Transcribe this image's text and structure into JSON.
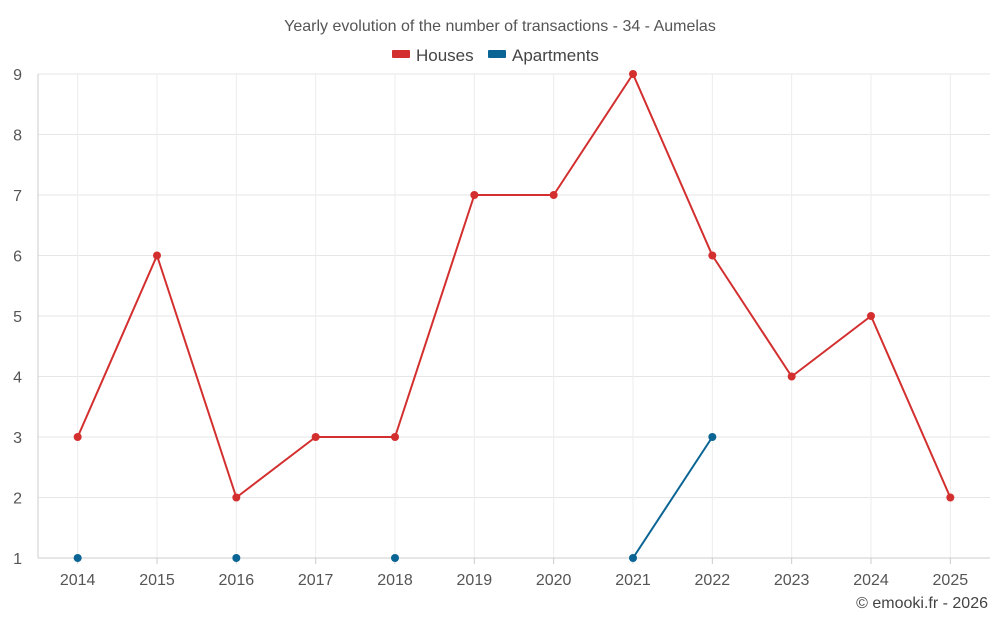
{
  "chart_data": {
    "type": "line",
    "title": "Yearly evolution of the number of transactions - 34 - Aumelas",
    "xlabel": "",
    "ylabel": "",
    "categories": [
      "2014",
      "2015",
      "2016",
      "2017",
      "2018",
      "2019",
      "2020",
      "2021",
      "2022",
      "2023",
      "2024",
      "2025"
    ],
    "ylim": [
      1,
      9
    ],
    "yticks": [
      1,
      2,
      3,
      4,
      5,
      6,
      7,
      8,
      9
    ],
    "grid": true,
    "legend_position": "top-center",
    "series": [
      {
        "name": "Houses",
        "color": "#d32f2f",
        "values": [
          3,
          6,
          2,
          3,
          3,
          7,
          7,
          9,
          6,
          4,
          5,
          2
        ]
      },
      {
        "name": "Apartments",
        "color": "#0b6594",
        "values": [
          1,
          null,
          1,
          null,
          1,
          null,
          null,
          1,
          3,
          null,
          null,
          null
        ]
      }
    ]
  },
  "footer": {
    "credit": "© emooki.fr - 2026"
  }
}
